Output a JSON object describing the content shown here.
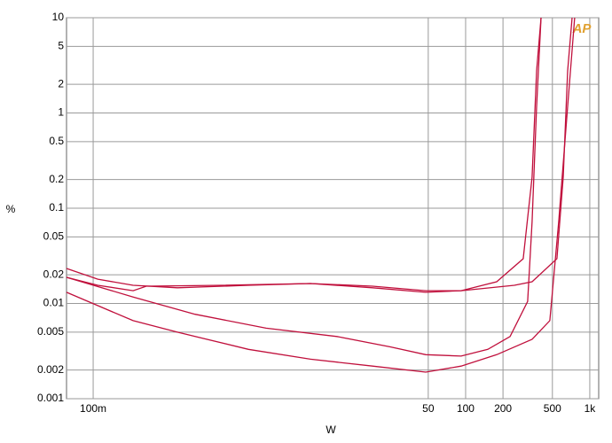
{
  "chart_data": {
    "type": "line",
    "x_label": "W",
    "y_label": "%",
    "logo": "AP",
    "log_x": true,
    "log_y": true,
    "grid": true,
    "xlim": [
      0.061,
      1180
    ],
    "ylim": [
      0.001,
      10
    ],
    "xticks": [
      {
        "value": 0.1,
        "label": "100m"
      },
      50,
      100,
      200,
      500,
      {
        "value": 1000,
        "label": "1k"
      }
    ],
    "yticks": [
      10,
      5,
      2,
      1,
      0.5,
      0.2,
      0.1,
      0.05,
      0.02,
      0.01,
      0.005,
      0.002,
      0.001
    ],
    "series": [
      {
        "color": "#c0103c",
        "x": [
          0.061,
          0.109,
          0.21,
          0.477,
          1.78,
          5.62,
          17.8,
          47.7,
          92,
          178,
          291,
          343,
          373,
          405
        ],
        "values": [
          0.0233,
          0.018,
          0.0155,
          0.0146,
          0.0155,
          0.0162,
          0.0146,
          0.0131,
          0.0136,
          0.0169,
          0.0295,
          0.212,
          2.77,
          10
        ]
      },
      {
        "color": "#c0103c",
        "x": [
          0.061,
          0.109,
          0.21,
          0.268,
          1.09,
          5.62,
          17.8,
          47.7,
          92,
          247,
          343,
          544,
          611,
          663,
          720
        ],
        "values": [
          0.0188,
          0.0155,
          0.0136,
          0.0152,
          0.0155,
          0.0162,
          0.0152,
          0.0136,
          0.0136,
          0.0155,
          0.0169,
          0.0295,
          0.212,
          2.77,
          10
        ]
      },
      {
        "color": "#c0103c",
        "x": [
          0.061,
          0.21,
          0.662,
          2.47,
          9.2,
          24.7,
          47.7,
          92,
          151,
          228,
          316,
          343,
          373,
          405
        ],
        "values": [
          0.0188,
          0.0117,
          0.0077,
          0.0055,
          0.0045,
          0.0035,
          0.0029,
          0.0028,
          0.0033,
          0.0045,
          0.0105,
          0.072,
          1.17,
          10
        ]
      },
      {
        "color": "#c0103c",
        "x": [
          0.061,
          0.21,
          0.477,
          1.78,
          5.62,
          17.8,
          47.7,
          92,
          178,
          343,
          477,
          562,
          663,
          756
        ],
        "values": [
          0.0131,
          0.0066,
          0.005,
          0.0033,
          0.0026,
          0.0022,
          0.0019,
          0.0022,
          0.0029,
          0.0042,
          0.0066,
          0.072,
          1.17,
          10
        ]
      }
    ]
  }
}
